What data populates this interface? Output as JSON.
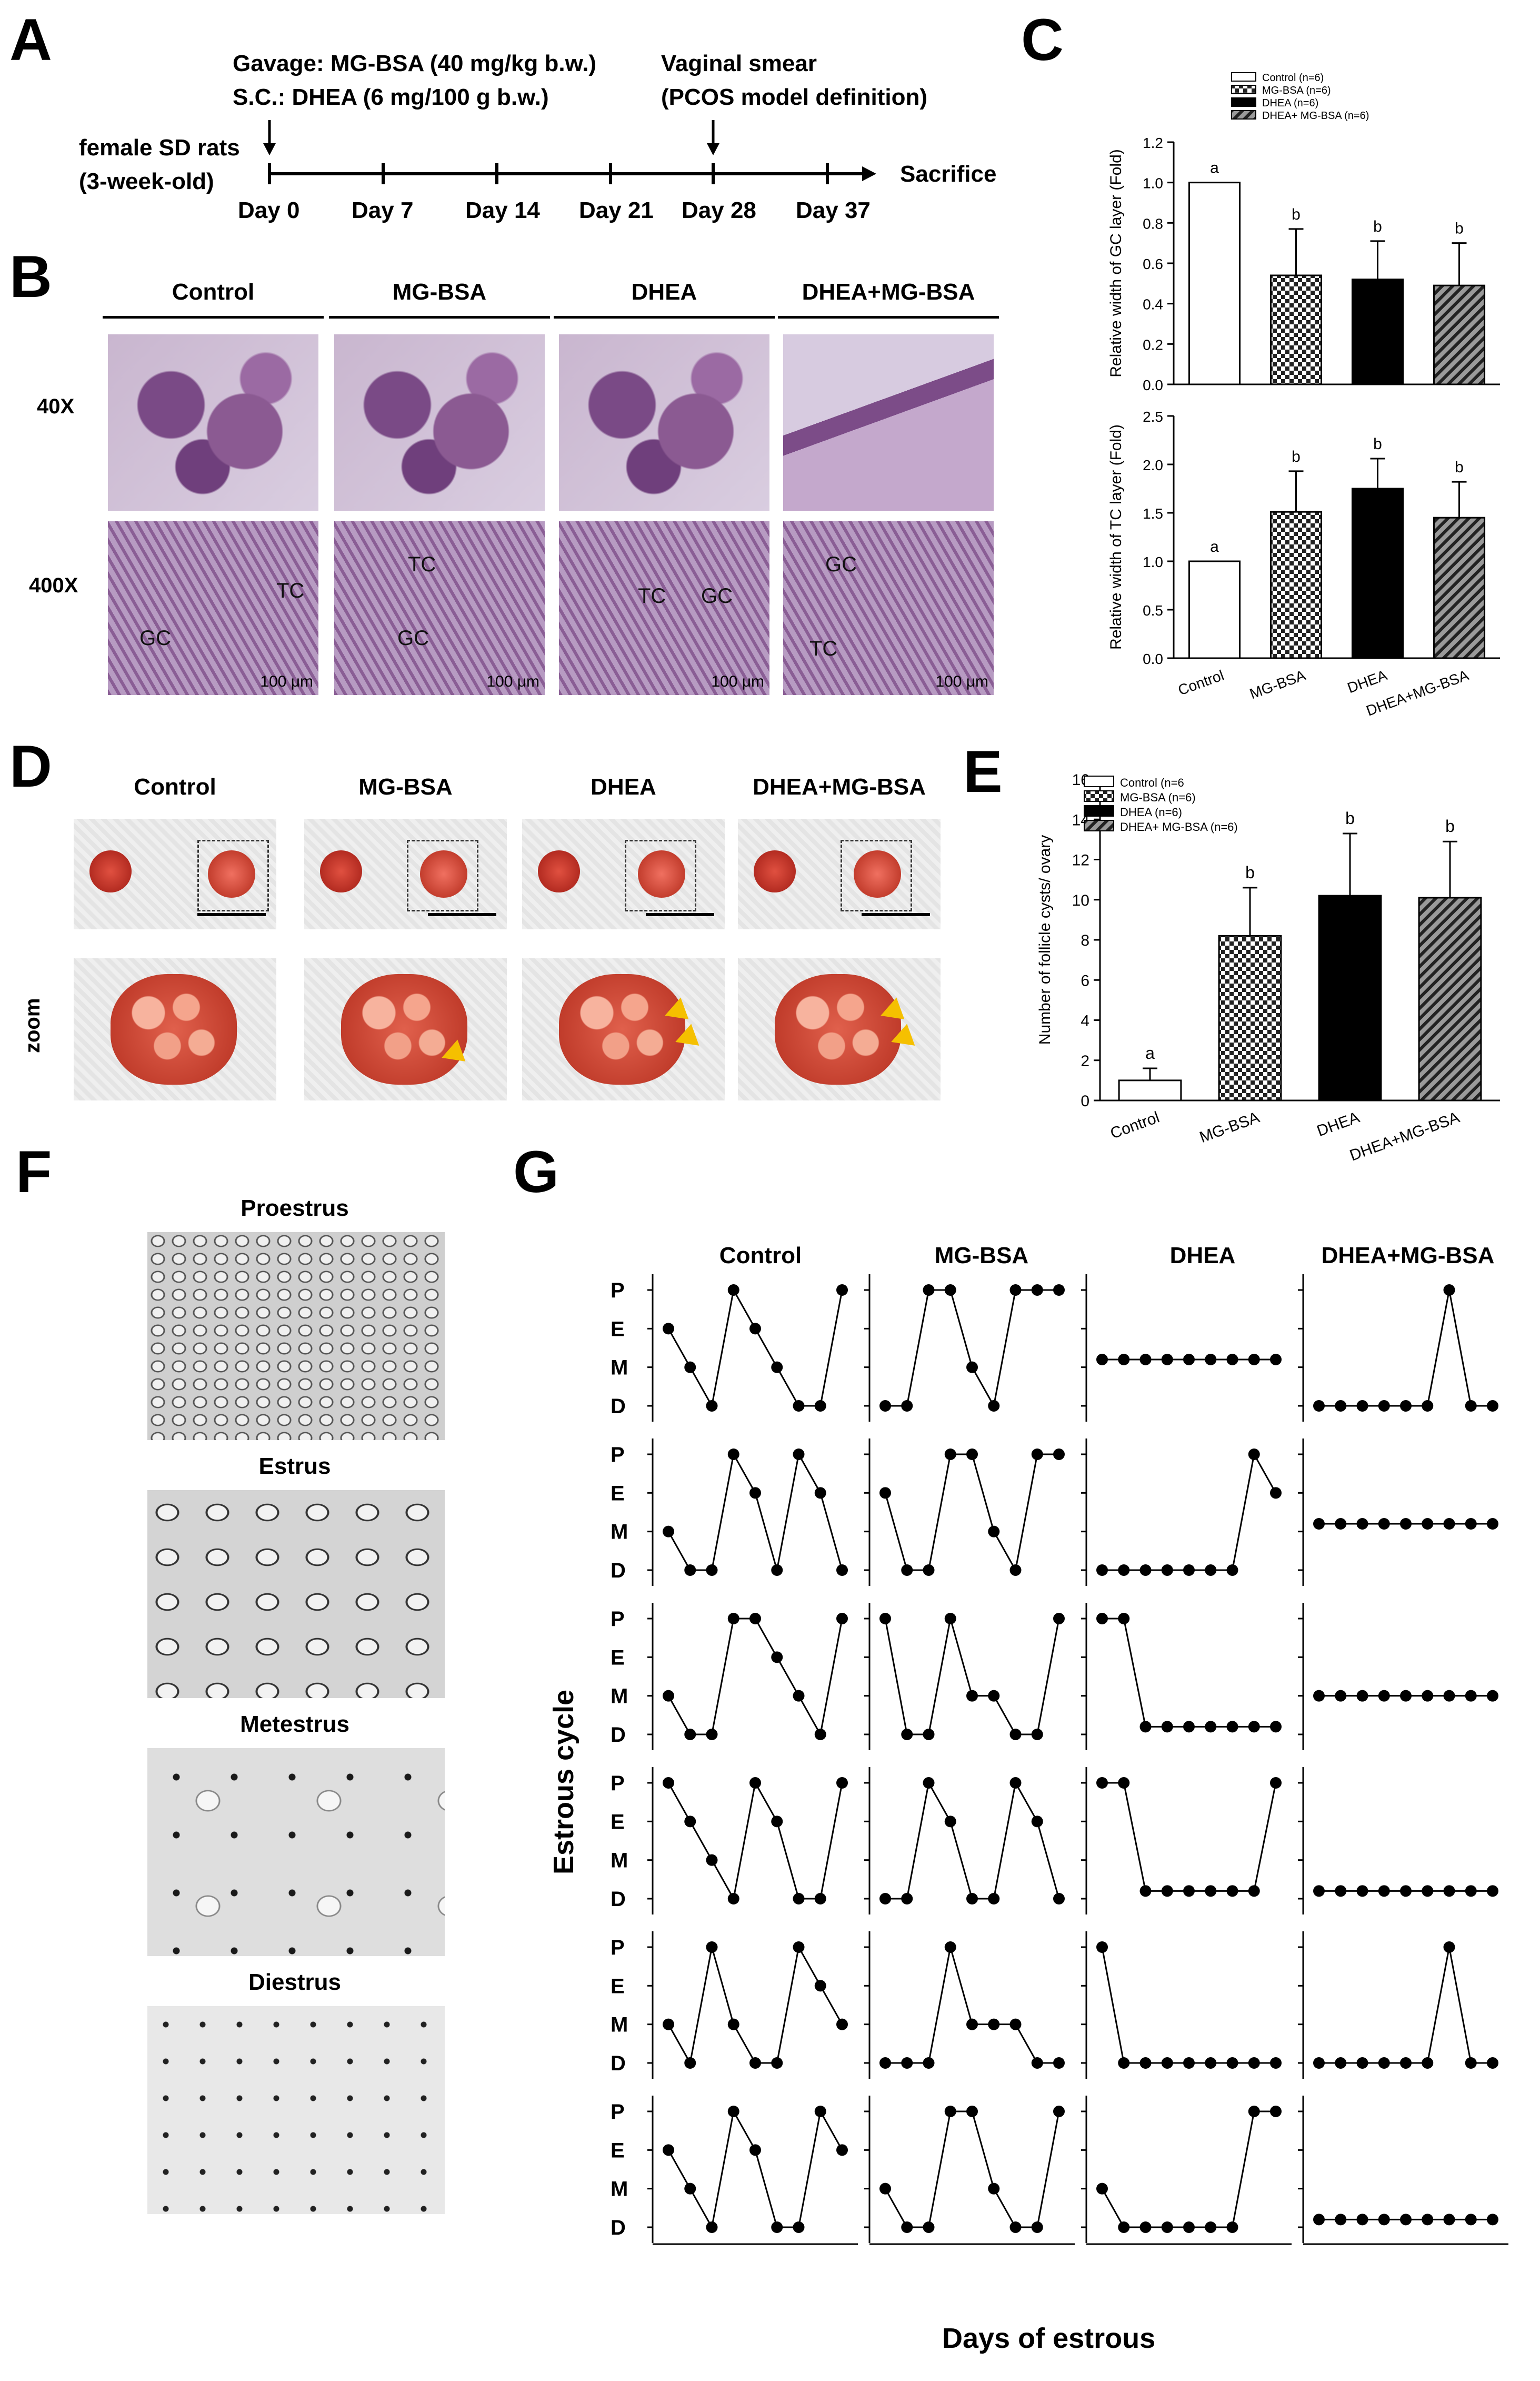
{
  "panels": {
    "A": {
      "label": "A",
      "gavage": "Gavage: MG-BSA (40 mg/kg b.w.)",
      "sc": "S.C.: DHEA (6 mg/100 g b.w.)",
      "smear1": "Vaginal smear",
      "smear2": "(PCOS model definition)",
      "rats1": "female SD rats",
      "rats2": "(3-week-old)",
      "days": [
        "Day 0",
        "Day 7",
        "Day 14",
        "Day 21",
        "Day 28",
        "Day 37"
      ],
      "sacrifice": "Sacrifice"
    },
    "B": {
      "label": "B",
      "groups": [
        "Control",
        "MG-BSA",
        "DHEA",
        "DHEA+MG-BSA"
      ],
      "rows": [
        "40X",
        "400X"
      ],
      "annot": {
        "gc": "GC",
        "tc": "TC",
        "scale": "100 μm"
      }
    },
    "C": {
      "label": "C"
    },
    "D": {
      "label": "D",
      "groups": [
        "Control",
        "MG-BSA",
        "DHEA",
        "DHEA+MG-BSA"
      ],
      "zoom": "zoom"
    },
    "E": {
      "label": "E"
    },
    "F": {
      "label": "F",
      "stages": [
        "Proestrus",
        "Estrus",
        "Metestrus",
        "Diestrus"
      ]
    },
    "G": {
      "label": "G",
      "groups": [
        "Control",
        "MG-BSA",
        "DHEA",
        "DHEA+MG-BSA"
      ],
      "ylabel": "Estrous cycle",
      "xlabel": "Days of estrous",
      "stage_labels": [
        "P",
        "E",
        "M",
        "D"
      ],
      "x_ticks": "0 1 2 3 4 5 6 7 8 9 10"
    }
  },
  "colors": {
    "cyst_arrow": "#f5c000",
    "dashed_box": "#333333"
  },
  "chart_data": [
    {
      "id": "C-top",
      "type": "bar",
      "categories": [
        "Control",
        "MG-BSA",
        "DHEA",
        "DHEA+MG-BSA"
      ],
      "values": [
        1.0,
        0.54,
        0.52,
        0.49
      ],
      "errors": [
        0.0,
        0.23,
        0.19,
        0.21
      ],
      "sig": [
        "a",
        "b",
        "b",
        "b"
      ],
      "ylabel": "Relative width of GC layer (Fold)",
      "ylim": [
        0,
        1.2
      ],
      "yticks": [
        "0.0",
        "0.2",
        "0.4",
        "0.6",
        "0.8",
        "1.0",
        "1.2"
      ],
      "legend": [
        "Control (n=6)",
        "MG-BSA (n=6)",
        "DHEA (n=6)",
        "DHEA+ MG-BSA (n=6)"
      ],
      "legend_position": "top-right"
    },
    {
      "id": "C-bottom",
      "type": "bar",
      "categories": [
        "Control",
        "MG-BSA",
        "DHEA",
        "DHEA+MG-BSA"
      ],
      "values": [
        1.0,
        1.51,
        1.75,
        1.45
      ],
      "errors": [
        0.0,
        0.42,
        0.31,
        0.37
      ],
      "sig": [
        "a",
        "b",
        "b",
        "b"
      ],
      "ylabel": "Relative width of TC layer (Fold)",
      "ylim": [
        0,
        2.5
      ],
      "yticks": [
        "0.0",
        "0.5",
        "1.0",
        "1.5",
        "2.0",
        "2.5"
      ]
    },
    {
      "id": "E",
      "type": "bar",
      "categories": [
        "Control",
        "MG-BSA",
        "DHEA",
        "DHEA+MG-BSA"
      ],
      "values": [
        1.0,
        8.2,
        10.2,
        10.1
      ],
      "errors": [
        0.6,
        2.4,
        3.1,
        2.8
      ],
      "sig": [
        "a",
        "b",
        "b",
        "b"
      ],
      "ylabel": "Number of follicle cysts/ ovary",
      "ylim": [
        0,
        16
      ],
      "yticks": [
        "0",
        "2",
        "4",
        "6",
        "8",
        "10",
        "12",
        "14",
        "16"
      ],
      "legend": [
        "Control (n=6",
        "MG-BSA (n=6)",
        "DHEA (n=6)",
        "DHEA+ MG-BSA (n=6)"
      ],
      "legend_position": "top-left"
    },
    {
      "id": "G",
      "type": "line",
      "x": [
        1,
        2,
        3,
        4,
        5,
        6,
        7,
        8,
        9
      ],
      "y_levels": [
        "D",
        "M",
        "E",
        "P"
      ],
      "groups": {
        "Control": [
          [
            "E",
            "M",
            "D",
            "P",
            "E",
            "M",
            "D",
            "D",
            "P"
          ],
          [
            "M",
            "D",
            "D",
            "P",
            "E",
            "D",
            "P",
            "E",
            "D"
          ],
          [
            "M",
            "D",
            "D",
            "P",
            "P",
            "E",
            "M",
            "D",
            "P"
          ],
          [
            "P",
            "E",
            "M",
            "D",
            "P",
            "E",
            "D",
            "D",
            "P"
          ],
          [
            "M",
            "D",
            "P",
            "M",
            "D",
            "D",
            "P",
            "E",
            "M"
          ],
          [
            "E",
            "M",
            "D",
            "P",
            "E",
            "D",
            "D",
            "P",
            "E"
          ]
        ],
        "MG-BSA": [
          [
            "D",
            "D",
            "P",
            "P",
            "M",
            "D",
            "P",
            "P",
            "P"
          ],
          [
            "E",
            "D",
            "D",
            "P",
            "P",
            "M",
            "D",
            "P",
            "P"
          ],
          [
            "P",
            "D",
            "D",
            "P",
            "M",
            "M",
            "D",
            "D",
            "P"
          ],
          [
            "D",
            "D",
            "P",
            "E",
            "D",
            "D",
            "P",
            "E",
            "D"
          ],
          [
            "D",
            "D",
            "D",
            "P",
            "M",
            "M",
            "M",
            "D",
            "D"
          ],
          [
            "M",
            "D",
            "D",
            "P",
            "P",
            "M",
            "D",
            "D",
            "P"
          ]
        ],
        "DHEA": [
          [
            "M-",
            "M-",
            "M-",
            "M-",
            "M-",
            "M-",
            "M-",
            "M-",
            "M-"
          ],
          [
            "D",
            "D",
            "D",
            "D",
            "D",
            "D",
            "D",
            "P",
            "E"
          ],
          [
            "P",
            "P",
            "D+",
            "D+",
            "D+",
            "D+",
            "D+",
            "D+",
            "D+"
          ],
          [
            "P",
            "P",
            "D+",
            "D+",
            "D+",
            "D+",
            "D+",
            "D+",
            "P"
          ],
          [
            "P",
            "D",
            "D",
            "D",
            "D",
            "D",
            "D",
            "D",
            "D"
          ],
          [
            "M",
            "D",
            "D",
            "D",
            "D",
            "D",
            "D",
            "P",
            "P"
          ]
        ],
        "DHEA+MG-BSA": [
          [
            "D",
            "D",
            "D",
            "D",
            "D",
            "D",
            "P",
            "D",
            "D"
          ],
          [
            "M-",
            "M-",
            "M-",
            "M-",
            "M-",
            "M-",
            "M-",
            "M-",
            "M-"
          ],
          [
            "M",
            "M",
            "M",
            "M",
            "M",
            "M",
            "M",
            "M",
            "M"
          ],
          [
            "D+",
            "D+",
            "D+",
            "D+",
            "D+",
            "D+",
            "D+",
            "D+",
            "D+"
          ],
          [
            "D",
            "D",
            "D",
            "D",
            "D",
            "D",
            "P",
            "D",
            "D"
          ],
          [
            "D+",
            "D+",
            "D+",
            "D+",
            "D+",
            "D+",
            "D+",
            "D+",
            "D+"
          ]
        ]
      }
    }
  ]
}
